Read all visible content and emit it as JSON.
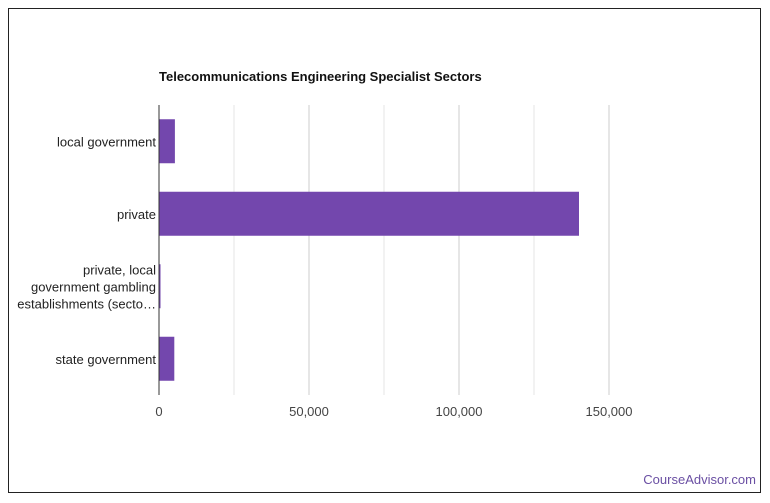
{
  "chart_data": {
    "type": "bar",
    "orientation": "horizontal",
    "title": "Telecommunications Engineering Specialist Sectors",
    "categories": [
      [
        "local government"
      ],
      [
        "private"
      ],
      [
        "private, local",
        "government gambling",
        "establishments (secto…"
      ],
      [
        "state government"
      ]
    ],
    "values": [
      5300,
      140000,
      500,
      5100
    ],
    "xlim": [
      0,
      150000
    ],
    "xticks": [
      0,
      50000,
      100000,
      150000
    ],
    "xtick_labels": [
      "0",
      "50,000",
      "100,000",
      "150,000"
    ],
    "minor_gridlines": [
      25000,
      75000,
      125000
    ],
    "grid": true,
    "bar_color": "#7347ad",
    "xlabel": "",
    "ylabel": ""
  },
  "footer": {
    "brand": "CourseAdvisor.com",
    "color": "#6a4fa3"
  }
}
